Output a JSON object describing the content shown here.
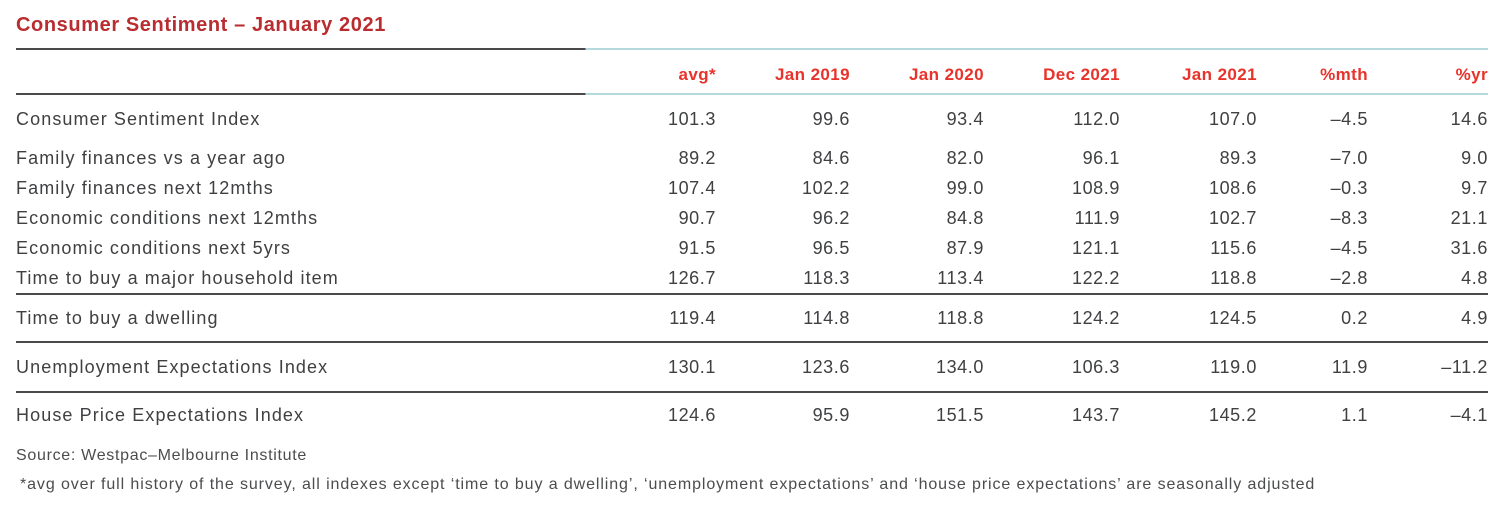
{
  "title": "Consumer Sentiment – January 2021",
  "colors": {
    "title_red": "#b92c30",
    "header_red": "#e8332b",
    "body_text": "#3f4042",
    "rule_dark": "#4a4a4c",
    "rule_teal": "#b5d8dc"
  },
  "table": {
    "columns": [
      "",
      "avg*",
      "Jan 2019",
      "Jan 2020",
      "Dec 2021",
      "Jan 2021",
      "%mth",
      "%yr"
    ],
    "rows": [
      {
        "label": "Consumer Sentiment Index",
        "values": [
          "101.3",
          "99.6",
          "93.4",
          "112.0",
          "107.0",
          "–4.5",
          "14.6"
        ]
      },
      {
        "label": "Family finances vs a year ago",
        "values": [
          "89.2",
          "84.6",
          "82.0",
          "96.1",
          "89.3",
          "–7.0",
          "9.0"
        ]
      },
      {
        "label": "Family finances next 12mths",
        "values": [
          "107.4",
          "102.2",
          "99.0",
          "108.9",
          "108.6",
          "–0.3",
          "9.7"
        ]
      },
      {
        "label": "Economic conditions next 12mths",
        "values": [
          "90.7",
          "96.2",
          "84.8",
          "111.9",
          "102.7",
          "–8.3",
          "21.1"
        ]
      },
      {
        "label": "Economic conditions next 5yrs",
        "values": [
          "91.5",
          "96.5",
          "87.9",
          "121.1",
          "115.6",
          "–4.5",
          "31.6"
        ]
      },
      {
        "label": "Time to buy a major household item",
        "values": [
          "126.7",
          "118.3",
          "113.4",
          "122.2",
          "118.8",
          "–2.8",
          "4.8"
        ]
      },
      {
        "label": "Time to buy a dwelling",
        "values": [
          "119.4",
          "114.8",
          "118.8",
          "124.2",
          "124.5",
          "0.2",
          "4.9"
        ]
      },
      {
        "label": "Unemployment Expectations Index",
        "values": [
          "130.1",
          "123.6",
          "134.0",
          "106.3",
          "119.0",
          "11.9",
          "–11.2"
        ]
      },
      {
        "label": "House Price Expectations Index",
        "values": [
          "124.6",
          "95.9",
          "151.5",
          "143.7",
          "145.2",
          "1.1",
          "–4.1"
        ]
      }
    ]
  },
  "footer": {
    "source": "Source: Westpac–Melbourne Institute",
    "note": "*avg over full history of the survey, all indexes except ‘time to buy a dwelling’, ‘unemployment expectations’ and ‘house price expectations’ are seasonally adjusted"
  }
}
